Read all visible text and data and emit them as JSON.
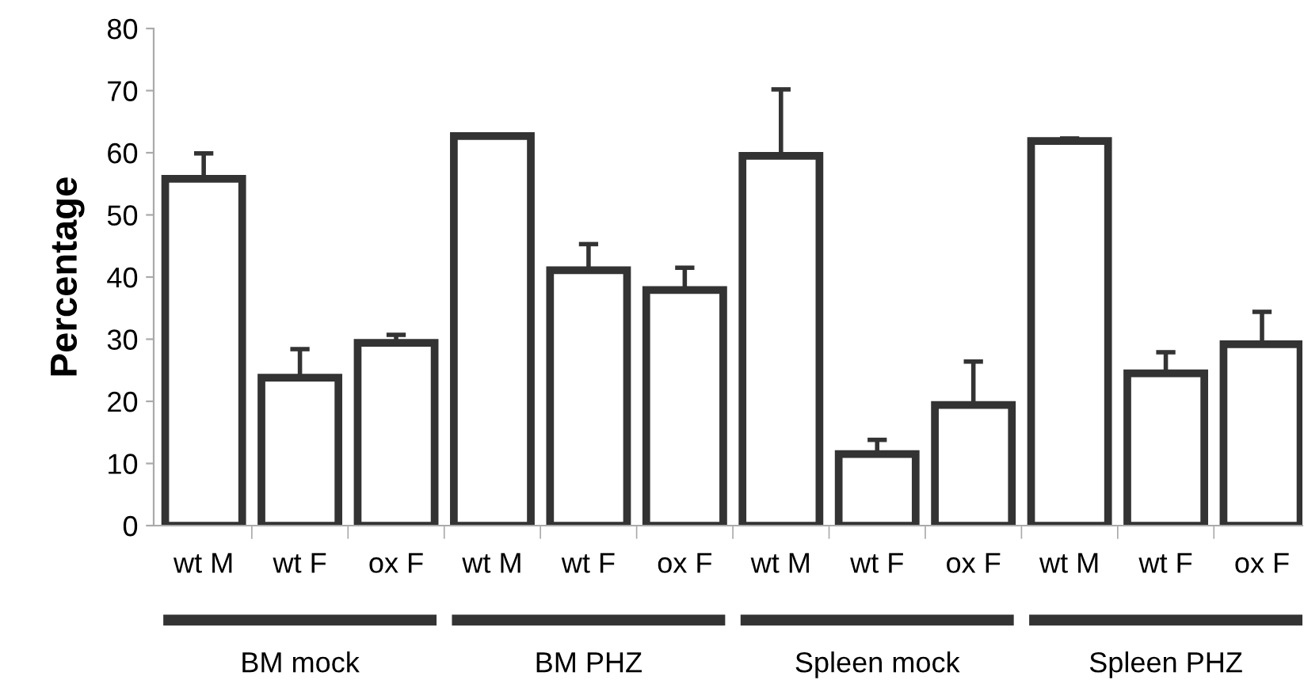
{
  "chart_data": {
    "type": "bar",
    "ylabel": "Percentage",
    "categories": [
      "wt M",
      "wt F",
      "ox F",
      "wt M",
      "wt F",
      "ox F",
      "wt M",
      "wt F",
      "ox F",
      "wt M",
      "wt F",
      "ox F"
    ],
    "values": [
      55.8,
      23.8,
      29.4,
      62.7,
      41.1,
      37.9,
      59.5,
      11.5,
      19.4,
      61.9,
      24.5,
      29.2
    ],
    "errors": [
      [
        55.8,
        59.9
      ],
      [
        23.8,
        28.4
      ],
      [
        29.4,
        30.7
      ],
      null,
      [
        41.1,
        45.3
      ],
      [
        37.9,
        41.5
      ],
      [
        59.5,
        70.2
      ],
      [
        11.5,
        13.8
      ],
      [
        19.4,
        26.4
      ],
      [
        61.9,
        62.3
      ],
      [
        24.5,
        27.9
      ],
      [
        29.2,
        34.4
      ]
    ],
    "color": "#ffffff",
    "ylim": [
      0,
      80
    ],
    "yticks": [
      0,
      10,
      20,
      30,
      40,
      50,
      60,
      70,
      80
    ],
    "annotations": [
      "BM mock",
      "BM PHZ",
      "Spleen mock",
      "Spleen PHZ"
    ],
    "grid": false,
    "legend": false
  }
}
